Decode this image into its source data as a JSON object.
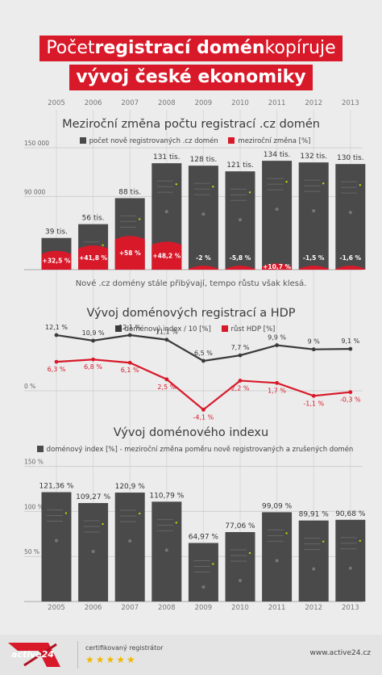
{
  "header": {
    "line1_a": "Počet ",
    "line1_b": "registrací domén",
    "line1_c": " kopíruje",
    "line2": "vývoj české ekonomiky"
  },
  "years": [
    "2005",
    "2006",
    "2007",
    "2008",
    "2009",
    "2010",
    "2011",
    "2012",
    "2013"
  ],
  "chart_data": [
    {
      "type": "bar",
      "title": "Meziroční změna počtu registrací .cz domén",
      "categories": [
        "2005",
        "2006",
        "2007",
        "2008",
        "2009",
        "2010",
        "2011",
        "2012",
        "2013"
      ],
      "y_ticks": [
        "150 000",
        "90 000"
      ],
      "y_tick_values": [
        150000,
        90000
      ],
      "ylim": [
        0,
        155000
      ],
      "series": [
        {
          "name": "počet nově registrovaných .cz domén",
          "values": [
            39000,
            56000,
            88000,
            131000,
            128000,
            121000,
            134000,
            132000,
            130000
          ],
          "labels": [
            "39 tis.",
            "56 tis.",
            "88 tis.",
            "131 tis.",
            "128 tis.",
            "121 tis.",
            "134 tis.",
            "132 tis.",
            "130 tis."
          ],
          "color": "#4a4a4a"
        },
        {
          "name": "meziroční změna [%]",
          "values": [
            32.5,
            41.8,
            58,
            48.2,
            -2,
            -5.8,
            10.7,
            -1.5,
            -1.6
          ],
          "labels": [
            "+32,5 %",
            "+41,8 %",
            "+58 %",
            "+48,2 %",
            "-2 %",
            "-5,8 %",
            "+10,7 %",
            "-1,5 %",
            "-1,6 %"
          ],
          "color": "#d8192a"
        }
      ],
      "note": "Nové .cz domény stále přibývají, tempo růstu však klesá."
    },
    {
      "type": "line",
      "title": "Vývoj doménových registrací a HDP",
      "categories": [
        "2005",
        "2006",
        "2007",
        "2008",
        "2009",
        "2010",
        "2011",
        "2012",
        "2013"
      ],
      "y_ticks": [
        "0 %"
      ],
      "series": [
        {
          "name": "doménový index / 10 [%]",
          "values": [
            12.1,
            10.9,
            12.1,
            11.1,
            6.5,
            7.7,
            9.9,
            9,
            9.1
          ],
          "labels": [
            "12,1 %",
            "10,9 %",
            "12,1 %",
            "11,1 %",
            "6,5 %",
            "7,7 %",
            "9,9 %",
            "9 %",
            "9,1 %"
          ],
          "color": "#3a3a3a"
        },
        {
          "name": "růst HDP [%]",
          "values": [
            6.3,
            6.8,
            6.1,
            2.5,
            -4.1,
            2.2,
            1.7,
            -1.1,
            -0.3
          ],
          "labels": [
            "6,3 %",
            "6,8 %",
            "6,1 %",
            "2,5 %",
            "-4,1 %",
            "2,2 %",
            "1,7 %",
            "-1,1 %",
            "-0,3 %"
          ],
          "color": "#d8192a"
        }
      ]
    },
    {
      "type": "bar",
      "title": "Vývoj doménového indexu",
      "categories": [
        "2005",
        "2006",
        "2007",
        "2008",
        "2009",
        "2010",
        "2011",
        "2012",
        "2013"
      ],
      "y_ticks": [
        "150 %",
        "100 %",
        "50 %"
      ],
      "y_tick_values": [
        150,
        100,
        50
      ],
      "ylim": [
        0,
        155
      ],
      "series": [
        {
          "name": "doménový index [%] - meziroční změna poměru nově registrovaných a zrušených domén",
          "values": [
            121.36,
            109.27,
            120.9,
            110.79,
            64.97,
            77.06,
            99.09,
            89.91,
            90.68
          ],
          "labels": [
            "121,36 %",
            "109,27 %",
            "120,9 %",
            "110,79 %",
            "64,97 %",
            "77,06 %",
            "99,09 %",
            "89,91 %",
            "90,68 %"
          ],
          "color": "#4a4a4a"
        }
      ]
    }
  ],
  "footer": {
    "logo": "active24",
    "cert": "certifikovaný registrátor",
    "stars": "★★★★★",
    "url": "www.active24.cz"
  },
  "colors": {
    "red": "#d8192a",
    "bar": "#4a4a4a",
    "bg": "#ececec"
  }
}
